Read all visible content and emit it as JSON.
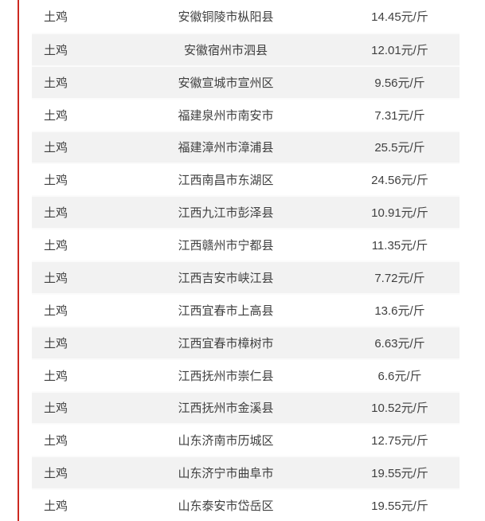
{
  "page": {
    "background": "#ffffff",
    "accent_line_color": "#cc2a21",
    "stripe_color": "#f2f2f2",
    "text_color": "#404040"
  },
  "table": {
    "rows": [
      {
        "breed": "土鸡",
        "location": "安徽铜陵市枞阳县",
        "price": "14.45元/斤",
        "shaded": false
      },
      {
        "breed": "土鸡",
        "location": "安徽宿州市泗县",
        "price": "12.01元/斤",
        "shaded": true
      },
      {
        "breed": "土鸡",
        "location": "安徽宣城市宣州区",
        "price": "9.56元/斤",
        "shaded": true
      },
      {
        "breed": "土鸡",
        "location": "福建泉州市南安市",
        "price": "7.31元/斤",
        "shaded": false
      },
      {
        "breed": "土鸡",
        "location": "福建漳州市漳浦县",
        "price": "25.5元/斤",
        "shaded": true
      },
      {
        "breed": "土鸡",
        "location": "江西南昌市东湖区",
        "price": "24.56元/斤",
        "shaded": false
      },
      {
        "breed": "土鸡",
        "location": "江西九江市彭泽县",
        "price": "10.91元/斤",
        "shaded": true
      },
      {
        "breed": "土鸡",
        "location": "江西赣州市宁都县",
        "price": "11.35元/斤",
        "shaded": false
      },
      {
        "breed": "土鸡",
        "location": "江西吉安市峡江县",
        "price": "7.72元/斤",
        "shaded": true
      },
      {
        "breed": "土鸡",
        "location": "江西宜春市上高县",
        "price": "13.6元/斤",
        "shaded": false
      },
      {
        "breed": "土鸡",
        "location": "江西宜春市樟树市",
        "price": "6.63元/斤",
        "shaded": true
      },
      {
        "breed": "土鸡",
        "location": "江西抚州市崇仁县",
        "price": "6.6元/斤",
        "shaded": false
      },
      {
        "breed": "土鸡",
        "location": "江西抚州市金溪县",
        "price": "10.52元/斤",
        "shaded": true
      },
      {
        "breed": "土鸡",
        "location": "山东济南市历城区",
        "price": "12.75元/斤",
        "shaded": false
      },
      {
        "breed": "土鸡",
        "location": "山东济宁市曲阜市",
        "price": "19.55元/斤",
        "shaded": true
      },
      {
        "breed": "土鸡",
        "location": "山东泰安市岱岳区",
        "price": "19.55元/斤",
        "shaded": false
      }
    ]
  }
}
